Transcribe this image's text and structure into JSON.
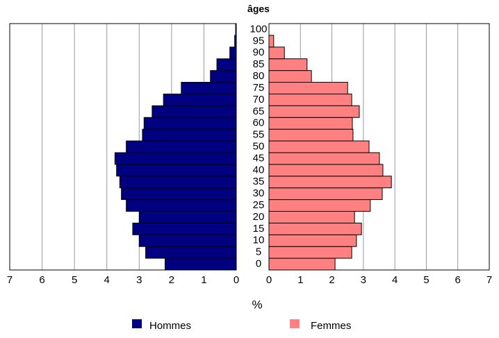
{
  "chart_data": {
    "type": "pyramid",
    "title": "âges",
    "x_label": "%",
    "categories": [
      0,
      5,
      10,
      15,
      20,
      25,
      30,
      35,
      40,
      45,
      50,
      55,
      60,
      65,
      70,
      75,
      80,
      85,
      90,
      95,
      100
    ],
    "series": [
      {
        "name": "Hommes",
        "color": "#000080",
        "side": "left",
        "values": [
          2.2,
          2.8,
          3.0,
          3.2,
          3.0,
          3.4,
          3.55,
          3.6,
          3.7,
          3.75,
          3.4,
          2.9,
          2.85,
          2.6,
          2.25,
          1.7,
          0.8,
          0.6,
          0.2,
          0.05,
          0.02
        ]
      },
      {
        "name": "Femmes",
        "color": "#ff8080",
        "side": "right",
        "values": [
          2.1,
          2.63,
          2.78,
          2.94,
          2.72,
          3.22,
          3.6,
          3.89,
          3.62,
          3.51,
          3.18,
          2.67,
          2.65,
          2.87,
          2.63,
          2.5,
          1.35,
          1.21,
          0.49,
          0.15,
          0
        ]
      }
    ],
    "xlim": [
      0,
      7
    ],
    "xticks": [
      0,
      1,
      2,
      3,
      4,
      5,
      6,
      7
    ],
    "grid": true
  }
}
